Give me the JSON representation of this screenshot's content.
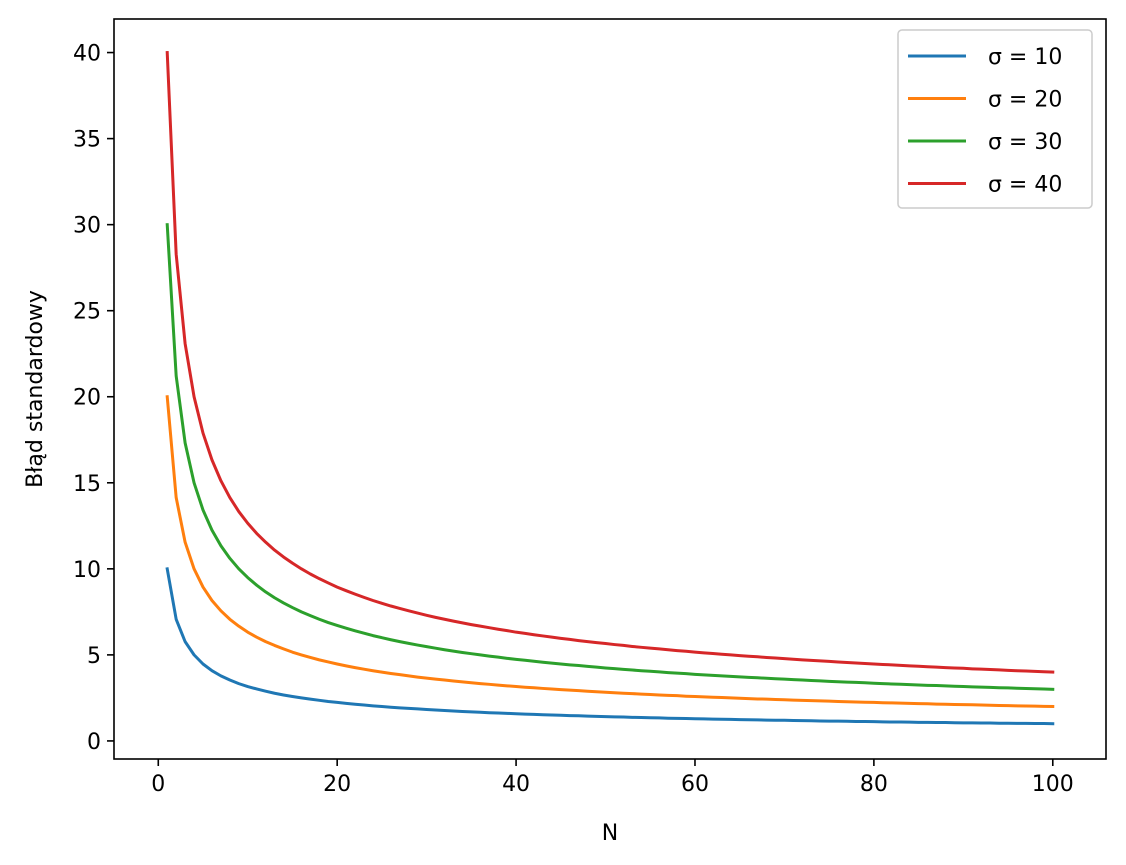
{
  "chart_data": {
    "type": "line",
    "title": "",
    "xlabel": "N",
    "ylabel": "Błąd standardowy",
    "xlim": [
      -4.95,
      105.95
    ],
    "ylim": [
      -1.05,
      41.95
    ],
    "xticks": [
      0,
      20,
      40,
      60,
      80,
      100
    ],
    "xtick_labels": [
      "0",
      "20",
      "40",
      "60",
      "80",
      "100"
    ],
    "yticks": [
      0,
      5,
      10,
      15,
      20,
      25,
      30,
      35,
      40
    ],
    "ytick_labels": [
      "0",
      "5",
      "10",
      "15",
      "20",
      "25",
      "30",
      "35",
      "40"
    ],
    "grid": false,
    "legend_position": "top-right",
    "x": [
      1,
      2,
      3,
      4,
      5,
      6,
      7,
      8,
      9,
      10,
      11,
      12,
      13,
      14,
      15,
      16,
      17,
      18,
      19,
      20,
      21,
      22,
      23,
      24,
      25,
      26,
      27,
      28,
      29,
      30,
      31,
      32,
      33,
      34,
      35,
      36,
      37,
      38,
      39,
      40,
      41,
      42,
      43,
      44,
      45,
      46,
      47,
      48,
      49,
      50,
      51,
      52,
      53,
      54,
      55,
      56,
      57,
      58,
      59,
      60,
      61,
      62,
      63,
      64,
      65,
      66,
      67,
      68,
      69,
      70,
      71,
      72,
      73,
      74,
      75,
      76,
      77,
      78,
      79,
      80,
      81,
      82,
      83,
      84,
      85,
      86,
      87,
      88,
      89,
      90,
      91,
      92,
      93,
      94,
      95,
      96,
      97,
      98,
      99,
      100
    ],
    "series": [
      {
        "name": "σ = 10",
        "color": "#1f77b4",
        "values": [
          10.0,
          7.07,
          5.77,
          5.0,
          4.47,
          4.08,
          3.78,
          3.54,
          3.33,
          3.16,
          3.02,
          2.89,
          2.77,
          2.67,
          2.58,
          2.5,
          2.43,
          2.36,
          2.29,
          2.24,
          2.18,
          2.13,
          2.09,
          2.04,
          2.0,
          1.96,
          1.92,
          1.89,
          1.86,
          1.83,
          1.8,
          1.77,
          1.74,
          1.71,
          1.69,
          1.67,
          1.64,
          1.62,
          1.6,
          1.58,
          1.56,
          1.54,
          1.52,
          1.51,
          1.49,
          1.47,
          1.46,
          1.44,
          1.43,
          1.41,
          1.4,
          1.39,
          1.37,
          1.36,
          1.35,
          1.34,
          1.32,
          1.31,
          1.3,
          1.29,
          1.28,
          1.27,
          1.26,
          1.25,
          1.24,
          1.23,
          1.22,
          1.21,
          1.2,
          1.2,
          1.19,
          1.18,
          1.17,
          1.16,
          1.15,
          1.15,
          1.14,
          1.13,
          1.13,
          1.12,
          1.11,
          1.1,
          1.1,
          1.09,
          1.08,
          1.08,
          1.07,
          1.07,
          1.06,
          1.05,
          1.05,
          1.04,
          1.04,
          1.03,
          1.03,
          1.02,
          1.02,
          1.01,
          1.01,
          1.0
        ]
      },
      {
        "name": "σ = 20",
        "color": "#ff7f0e",
        "values": [
          20.0,
          14.14,
          11.55,
          10.0,
          8.94,
          8.16,
          7.56,
          7.07,
          6.67,
          6.32,
          6.03,
          5.77,
          5.55,
          5.35,
          5.16,
          5.0,
          4.85,
          4.71,
          4.59,
          4.47,
          4.36,
          4.26,
          4.17,
          4.08,
          4.0,
          3.92,
          3.85,
          3.78,
          3.71,
          3.65,
          3.59,
          3.54,
          3.48,
          3.43,
          3.38,
          3.33,
          3.29,
          3.24,
          3.2,
          3.16,
          3.12,
          3.09,
          3.05,
          3.02,
          2.98,
          2.95,
          2.92,
          2.89,
          2.86,
          2.83,
          2.8,
          2.77,
          2.75,
          2.72,
          2.7,
          2.67,
          2.65,
          2.63,
          2.6,
          2.58,
          2.56,
          2.54,
          2.52,
          2.5,
          2.48,
          2.46,
          2.44,
          2.43,
          2.41,
          2.39,
          2.37,
          2.36,
          2.34,
          2.33,
          2.31,
          2.29,
          2.28,
          2.26,
          2.25,
          2.24,
          2.22,
          2.21,
          2.2,
          2.18,
          2.17,
          2.16,
          2.14,
          2.13,
          2.12,
          2.11,
          2.1,
          2.09,
          2.07,
          2.06,
          2.05,
          2.04,
          2.03,
          2.02,
          2.01,
          2.0
        ]
      },
      {
        "name": "σ = 30",
        "color": "#2ca02c",
        "values": [
          30.0,
          21.21,
          17.32,
          15.0,
          13.42,
          12.25,
          11.34,
          10.61,
          10.0,
          9.49,
          9.05,
          8.66,
          8.32,
          8.02,
          7.75,
          7.5,
          7.28,
          7.07,
          6.88,
          6.71,
          6.55,
          6.4,
          6.26,
          6.12,
          6.0,
          5.88,
          5.77,
          5.67,
          5.57,
          5.48,
          5.39,
          5.3,
          5.22,
          5.14,
          5.07,
          5.0,
          4.93,
          4.87,
          4.8,
          4.74,
          4.69,
          4.63,
          4.57,
          4.52,
          4.47,
          4.42,
          4.38,
          4.33,
          4.29,
          4.24,
          4.2,
          4.16,
          4.12,
          4.08,
          4.05,
          4.01,
          3.97,
          3.94,
          3.91,
          3.87,
          3.84,
          3.81,
          3.78,
          3.75,
          3.72,
          3.69,
          3.67,
          3.64,
          3.61,
          3.59,
          3.56,
          3.54,
          3.51,
          3.49,
          3.46,
          3.44,
          3.42,
          3.4,
          3.38,
          3.35,
          3.33,
          3.31,
          3.29,
          3.27,
          3.25,
          3.23,
          3.22,
          3.2,
          3.18,
          3.16,
          3.14,
          3.13,
          3.11,
          3.09,
          3.08,
          3.06,
          3.05,
          3.03,
          3.02,
          3.0
        ]
      },
      {
        "name": "σ = 40",
        "color": "#d62728",
        "values": [
          40.0,
          28.28,
          23.09,
          20.0,
          17.89,
          16.33,
          15.12,
          14.14,
          13.33,
          12.65,
          12.06,
          11.55,
          11.09,
          10.69,
          10.33,
          10.0,
          9.7,
          9.43,
          9.18,
          8.94,
          8.73,
          8.53,
          8.34,
          8.16,
          8.0,
          7.84,
          7.7,
          7.56,
          7.43,
          7.3,
          7.18,
          7.07,
          6.96,
          6.86,
          6.76,
          6.67,
          6.58,
          6.49,
          6.41,
          6.32,
          6.25,
          6.17,
          6.1,
          6.03,
          5.96,
          5.9,
          5.83,
          5.77,
          5.71,
          5.66,
          5.6,
          5.55,
          5.49,
          5.44,
          5.39,
          5.35,
          5.3,
          5.25,
          5.21,
          5.16,
          5.12,
          5.08,
          5.04,
          5.0,
          4.96,
          4.92,
          4.89,
          4.85,
          4.82,
          4.78,
          4.75,
          4.71,
          4.68,
          4.65,
          4.62,
          4.59,
          4.56,
          4.53,
          4.5,
          4.47,
          4.44,
          4.42,
          4.39,
          4.36,
          4.34,
          4.31,
          4.29,
          4.26,
          4.24,
          4.22,
          4.19,
          4.17,
          4.15,
          4.13,
          4.1,
          4.08,
          4.06,
          4.04,
          4.02,
          4.0
        ]
      }
    ]
  }
}
